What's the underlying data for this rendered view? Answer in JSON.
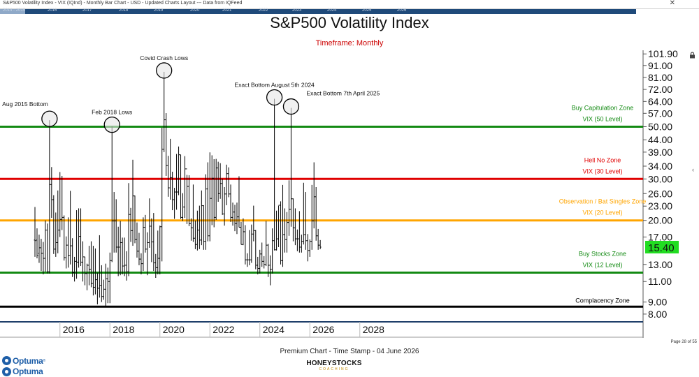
{
  "window": {
    "header_text": "S&P500 Volatility Index - VIX (IQInd) - Monthly Bar Chart - USD - Updated Charts Layout --- Data from IQFeed",
    "navigator_labels": [
      "2014 - 2015",
      "2016",
      "2017",
      "2018",
      "2019",
      "2020",
      "2021",
      "2022",
      "2023",
      "2024",
      "2025",
      "2026"
    ]
  },
  "footer": {
    "timestamp_text": "Premium Chart - Time Stamp - 04 June 2026",
    "page_text": "Page 28 of 55",
    "logo_primary": "Optuma",
    "logo_secondary": "Optuma",
    "brand_main": "HONEYSTOCKS",
    "brand_sub": "COACHING"
  },
  "colors": {
    "green": "#138a13",
    "red": "#e00000",
    "orange": "#ffa500",
    "black": "#000000",
    "price_box": "#22dd22"
  },
  "icons": [
    "lock-icon",
    "close-icon",
    "chevron-left-icon"
  ],
  "chart_data": {
    "type": "ohlc",
    "title": "S&P500 Volatility Index",
    "subtitle": "Timeframe: Monthly",
    "y_scale": "log",
    "y_ticks": [
      "101.90",
      "91.00",
      "81.00",
      "72.00",
      "64.00",
      "57.00",
      "50.00",
      "44.00",
      "39.00",
      "34.00",
      "30.00",
      "26.00",
      "23.00",
      "20.00",
      "17.00",
      "13.00",
      "11.00",
      "9.00",
      "8.00"
    ],
    "x_ticks": [
      "2016",
      "2018",
      "2020",
      "2022",
      "2024",
      "2026",
      "2028"
    ],
    "last_price": "15.40",
    "horizontal_levels": [
      {
        "value": 50,
        "color": "green",
        "labels": [
          "Buy Capitulation Zone",
          "VIX (50 Level)"
        ]
      },
      {
        "value": 30,
        "color": "red",
        "labels": [
          "Hell No Zone",
          "VIX (30 Level)"
        ]
      },
      {
        "value": 20,
        "color": "orange",
        "labels": [
          "Observation / Bat Singles Zone",
          "VIX (20 Level)"
        ]
      },
      {
        "value": 12,
        "color": "green",
        "labels": [
          "Buy Stocks Zone",
          "VIX (12 Level)"
        ]
      },
      {
        "value": 8.6,
        "color": "black",
        "labels": [
          "Complacency Zone"
        ]
      }
    ],
    "annotations": [
      {
        "label": "Aug 2015 Bottom",
        "date": "2015-08",
        "value": 53.3
      },
      {
        "label": "Feb 2018 Lows",
        "date": "2018-02",
        "value": 50.3
      },
      {
        "label": "Covid Crash Lows",
        "date": "2020-03",
        "value": 85.5
      },
      {
        "label": "Exact Bottom August 5th 2024",
        "date": "2024-08",
        "value": 65.7
      },
      {
        "label": "Exact Bottom 7th April 2025",
        "date": "2025-04",
        "value": 60.1
      }
    ],
    "x_start": "2015-01",
    "bars": [
      [
        16.5,
        22.8,
        14.0,
        16.4
      ],
      [
        16.5,
        18.5,
        13.8,
        14.2
      ],
      [
        14.5,
        17.4,
        13.2,
        15.3
      ],
      [
        15.3,
        16.7,
        12.2,
        14.5
      ],
      [
        14.5,
        16.2,
        11.8,
        13.8
      ],
      [
        13.8,
        20.0,
        12.1,
        18.2
      ],
      [
        18.2,
        19.4,
        11.9,
        12.1
      ],
      [
        12.1,
        53.3,
        11.9,
        28.4
      ],
      [
        28.4,
        33.7,
        20.5,
        24.5
      ],
      [
        24.5,
        25.6,
        14.4,
        15.1
      ],
      [
        15.1,
        21.6,
        14.0,
        16.1
      ],
      [
        16.1,
        26.8,
        14.5,
        18.2
      ],
      [
        18.2,
        32.1,
        17.0,
        20.2
      ],
      [
        20.2,
        30.9,
        18.2,
        20.6
      ],
      [
        20.6,
        21.0,
        13.5,
        13.9
      ],
      [
        13.9,
        17.1,
        12.5,
        15.7
      ],
      [
        15.7,
        20.6,
        12.6,
        14.2
      ],
      [
        14.2,
        26.7,
        13.0,
        15.6
      ],
      [
        15.6,
        16.8,
        11.5,
        12.0
      ],
      [
        12.0,
        14.0,
        11.0,
        13.4
      ],
      [
        13.4,
        22.1,
        11.3,
        13.3
      ],
      [
        13.3,
        22.5,
        12.6,
        17.1
      ],
      [
        17.1,
        22.5,
        12.8,
        13.3
      ],
      [
        13.3,
        16.3,
        11.0,
        14.0
      ],
      [
        14.0,
        14.0,
        10.6,
        11.9
      ],
      [
        11.9,
        13.1,
        10.1,
        12.9
      ],
      [
        12.9,
        15.6,
        10.6,
        12.4
      ],
      [
        12.4,
        16.3,
        10.4,
        10.8
      ],
      [
        10.8,
        15.6,
        9.6,
        10.4
      ],
      [
        10.4,
        15.2,
        9.7,
        11.2
      ],
      [
        11.2,
        12.0,
        8.8,
        10.3
      ],
      [
        10.3,
        17.3,
        9.4,
        10.6
      ],
      [
        10.6,
        12.9,
        9.0,
        9.5
      ],
      [
        9.5,
        11.2,
        9.2,
        10.2
      ],
      [
        10.2,
        13.1,
        8.6,
        11.3
      ],
      [
        11.3,
        12.6,
        8.9,
        11.0
      ],
      [
        11.0,
        14.6,
        8.9,
        13.5
      ],
      [
        13.5,
        50.3,
        13.3,
        19.9
      ],
      [
        19.9,
        26.4,
        14.6,
        19.9
      ],
      [
        19.9,
        24.6,
        14.6,
        15.4
      ],
      [
        15.4,
        18.8,
        11.6,
        15.4
      ],
      [
        15.4,
        19.9,
        11.7,
        16.1
      ],
      [
        16.1,
        16.9,
        11.8,
        12.8
      ],
      [
        12.8,
        16.9,
        11.6,
        12.9
      ],
      [
        12.9,
        14.8,
        11.1,
        12.1
      ],
      [
        12.1,
        28.8,
        11.6,
        21.2
      ],
      [
        21.2,
        22.6,
        16.2,
        18.1
      ],
      [
        18.1,
        36.2,
        15.6,
        25.4
      ],
      [
        25.4,
        25.5,
        16.0,
        16.6
      ],
      [
        16.6,
        19.6,
        13.9,
        14.8
      ],
      [
        14.8,
        17.7,
        12.9,
        13.7
      ],
      [
        13.7,
        14.5,
        11.8,
        13.1
      ],
      [
        13.1,
        20.6,
        12.2,
        18.7
      ],
      [
        18.7,
        21.1,
        14.6,
        15.1
      ],
      [
        15.1,
        17.8,
        11.7,
        16.1
      ],
      [
        16.1,
        24.8,
        15.3,
        18.9
      ],
      [
        18.9,
        20.4,
        13.3,
        16.2
      ],
      [
        16.2,
        21.5,
        12.2,
        13.2
      ],
      [
        13.2,
        14.4,
        11.4,
        12.6
      ],
      [
        12.6,
        18.1,
        11.8,
        13.8
      ],
      [
        13.8,
        19.0,
        11.8,
        18.8
      ],
      [
        18.8,
        49.5,
        13.4,
        40.1
      ],
      [
        40.1,
        85.5,
        39.0,
        53.5
      ],
      [
        53.5,
        57.1,
        30.9,
        34.2
      ],
      [
        34.2,
        37.6,
        25.2,
        27.5
      ],
      [
        27.5,
        44.4,
        24.5,
        30.4
      ],
      [
        30.4,
        32.2,
        22.1,
        24.5
      ],
      [
        24.5,
        27.5,
        20.3,
        26.4
      ],
      [
        26.4,
        38.3,
        22.2,
        26.4
      ],
      [
        26.4,
        41.2,
        25.6,
        38.0
      ],
      [
        38.0,
        38.0,
        20.3,
        20.6
      ],
      [
        20.6,
        26.1,
        19.9,
        22.8
      ],
      [
        22.8,
        37.5,
        20.5,
        33.1
      ],
      [
        33.1,
        31.2,
        19.3,
        27.9
      ],
      [
        27.9,
        31.1,
        18.9,
        19.4
      ],
      [
        19.4,
        20.4,
        16.4,
        18.6
      ],
      [
        18.6,
        28.4,
        16.2,
        16.8
      ],
      [
        16.8,
        20.0,
        15.1,
        15.8
      ],
      [
        15.8,
        22.0,
        14.9,
        18.2
      ],
      [
        18.2,
        23.1,
        15.1,
        16.5
      ],
      [
        16.5,
        26.8,
        15.7,
        23.1
      ],
      [
        23.1,
        23.2,
        15.0,
        16.3
      ],
      [
        16.3,
        31.4,
        15.0,
        27.2
      ],
      [
        27.2,
        35.3,
        16.3,
        17.2
      ],
      [
        17.2,
        38.9,
        16.3,
        24.8
      ],
      [
        24.8,
        37.8,
        19.1,
        30.2
      ],
      [
        30.2,
        36.4,
        18.7,
        20.6
      ],
      [
        20.6,
        36.5,
        20.1,
        33.4
      ],
      [
        33.4,
        35.5,
        24.0,
        26.0
      ],
      [
        26.0,
        35.0,
        24.7,
        28.7
      ],
      [
        28.7,
        30.1,
        21.1,
        21.3
      ],
      [
        21.3,
        27.7,
        19.0,
        25.9
      ],
      [
        25.9,
        34.5,
        23.2,
        31.6
      ],
      [
        31.6,
        33.6,
        25.1,
        25.9
      ],
      [
        25.9,
        28.4,
        19.7,
        20.6
      ],
      [
        20.6,
        23.8,
        19.0,
        21.7
      ],
      [
        21.7,
        23.3,
        18.0,
        19.4
      ],
      [
        19.4,
        23.8,
        17.5,
        20.7
      ],
      [
        20.7,
        30.8,
        18.7,
        18.7
      ],
      [
        18.7,
        19.7,
        15.8,
        15.8
      ],
      [
        15.8,
        20.4,
        15.7,
        17.9
      ],
      [
        17.9,
        19.1,
        13.0,
        13.6
      ],
      [
        13.6,
        14.5,
        12.7,
        13.6
      ],
      [
        13.6,
        18.2,
        12.9,
        13.6
      ],
      [
        13.6,
        19.2,
        13.2,
        17.5
      ],
      [
        17.5,
        23.1,
        16.3,
        18.1
      ],
      [
        18.1,
        18.2,
        12.4,
        12.9
      ],
      [
        12.9,
        14.0,
        11.8,
        12.5
      ],
      [
        12.5,
        15.0,
        11.9,
        14.4
      ],
      [
        14.4,
        16.1,
        12.7,
        13.4
      ],
      [
        13.4,
        14.1,
        12.5,
        13.0
      ],
      [
        13.0,
        19.9,
        12.8,
        15.7
      ],
      [
        15.7,
        15.9,
        11.5,
        12.9
      ],
      [
        12.9,
        14.2,
        10.6,
        12.4
      ],
      [
        12.4,
        18.5,
        11.9,
        16.4
      ],
      [
        16.4,
        65.7,
        14.9,
        15.0
      ],
      [
        15.0,
        22.0,
        14.9,
        16.7
      ],
      [
        16.7,
        23.1,
        15.4,
        23.2
      ],
      [
        23.2,
        24.1,
        13.0,
        13.5
      ],
      [
        13.5,
        28.3,
        12.7,
        17.4
      ],
      [
        17.4,
        22.5,
        14.6,
        16.6
      ],
      [
        16.6,
        21.7,
        14.6,
        19.6
      ],
      [
        19.6,
        29.6,
        17.2,
        22.3
      ],
      [
        22.3,
        60.1,
        18.8,
        24.7
      ],
      [
        24.7,
        24.8,
        16.3,
        18.6
      ],
      [
        18.6,
        22.5,
        15.7,
        16.7
      ],
      [
        16.7,
        18.3,
        14.8,
        16.7
      ],
      [
        16.7,
        21.9,
        14.6,
        15.4
      ],
      [
        15.4,
        17.4,
        14.6,
        16.3
      ],
      [
        16.3,
        28.9,
        15.8,
        17.4
      ],
      [
        17.4,
        26.4,
        15.0,
        16.4
      ],
      [
        16.4,
        17.5,
        13.4,
        14.9
      ],
      [
        14.9,
        16.6,
        14.0,
        16.3
      ],
      [
        16.3,
        28.3,
        15.0,
        19.9
      ],
      [
        19.9,
        35.3,
        18.5,
        25.2
      ],
      [
        25.2,
        27.7,
        16.4,
        17.2
      ],
      [
        17.2,
        18.4,
        15.0,
        15.7
      ],
      [
        15.7,
        16.5,
        15.1,
        15.4
      ]
    ]
  }
}
